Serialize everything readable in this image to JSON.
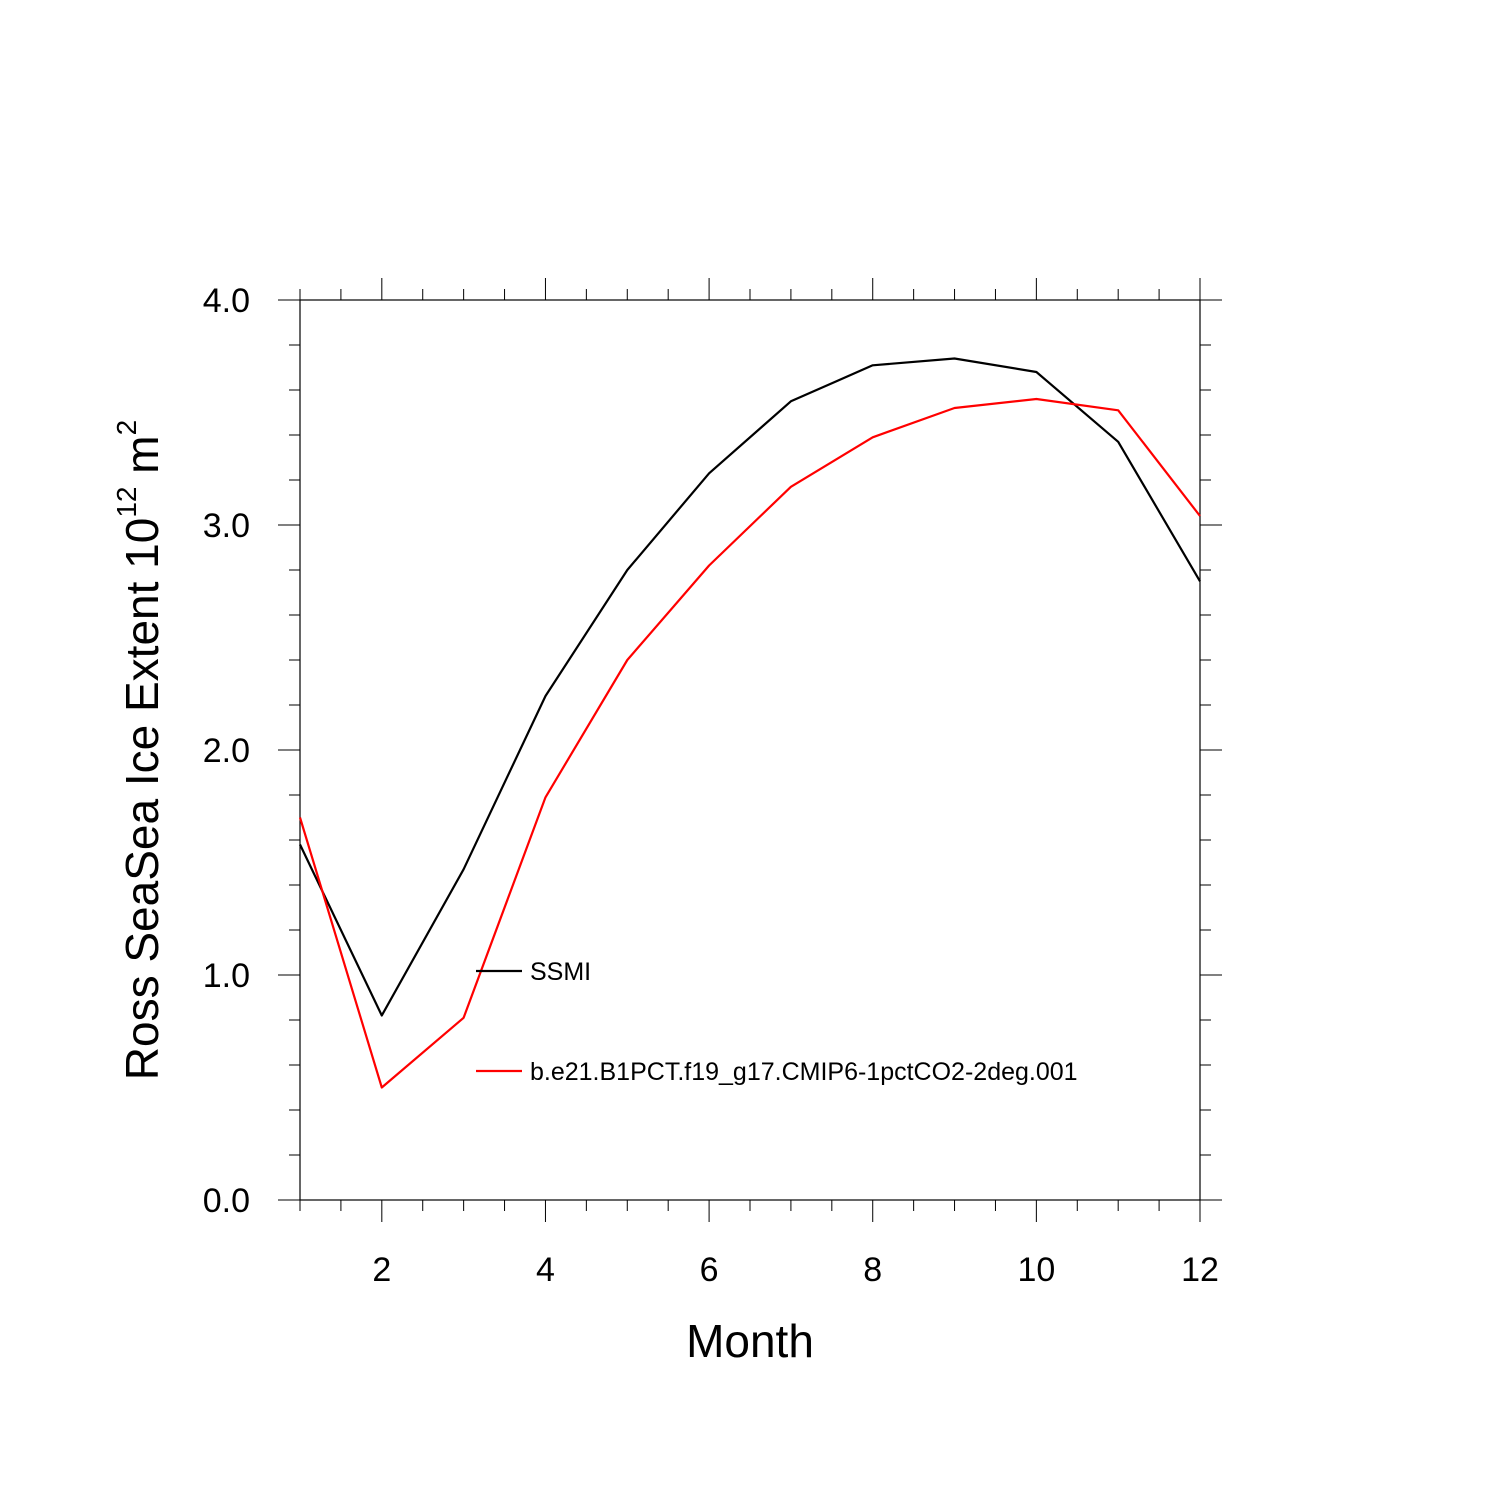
{
  "chart_data": {
    "type": "line",
    "xlabel": "Month",
    "ylabel_main": "Ross SeaSea Ice Extent 10",
    "ylabel_superscript_1": "12",
    "ylabel_unit": " m",
    "ylabel_superscript_2": "2",
    "xlim": [
      1,
      12
    ],
    "ylim": [
      0.0,
      4.0
    ],
    "x_ticks": [
      2,
      4,
      6,
      8,
      10,
      12
    ],
    "x_tick_labels": [
      "2",
      "4",
      "6",
      "8",
      "10",
      "12"
    ],
    "y_ticks": [
      0.0,
      1.0,
      2.0,
      3.0,
      4.0
    ],
    "y_tick_labels": [
      "0.0",
      "1.0",
      "2.0",
      "3.0",
      "4.0"
    ],
    "grid": false,
    "legend_position": "inside, lower-middle",
    "x": [
      1,
      2,
      3,
      4,
      5,
      6,
      7,
      8,
      9,
      10,
      11,
      12
    ],
    "series": [
      {
        "name": "SSMI",
        "color": "#000000",
        "values": [
          1.58,
          0.82,
          1.47,
          2.24,
          2.8,
          3.23,
          3.55,
          3.71,
          3.74,
          3.68,
          3.37,
          2.75
        ]
      },
      {
        "name": "b.e21.B1PCT.f19_g17.CMIP6-1pctCO2-2deg.001",
        "color": "#ff0000",
        "values": [
          1.7,
          0.5,
          0.81,
          1.79,
          2.4,
          2.82,
          3.17,
          3.39,
          3.52,
          3.56,
          3.51,
          3.04
        ]
      }
    ]
  }
}
